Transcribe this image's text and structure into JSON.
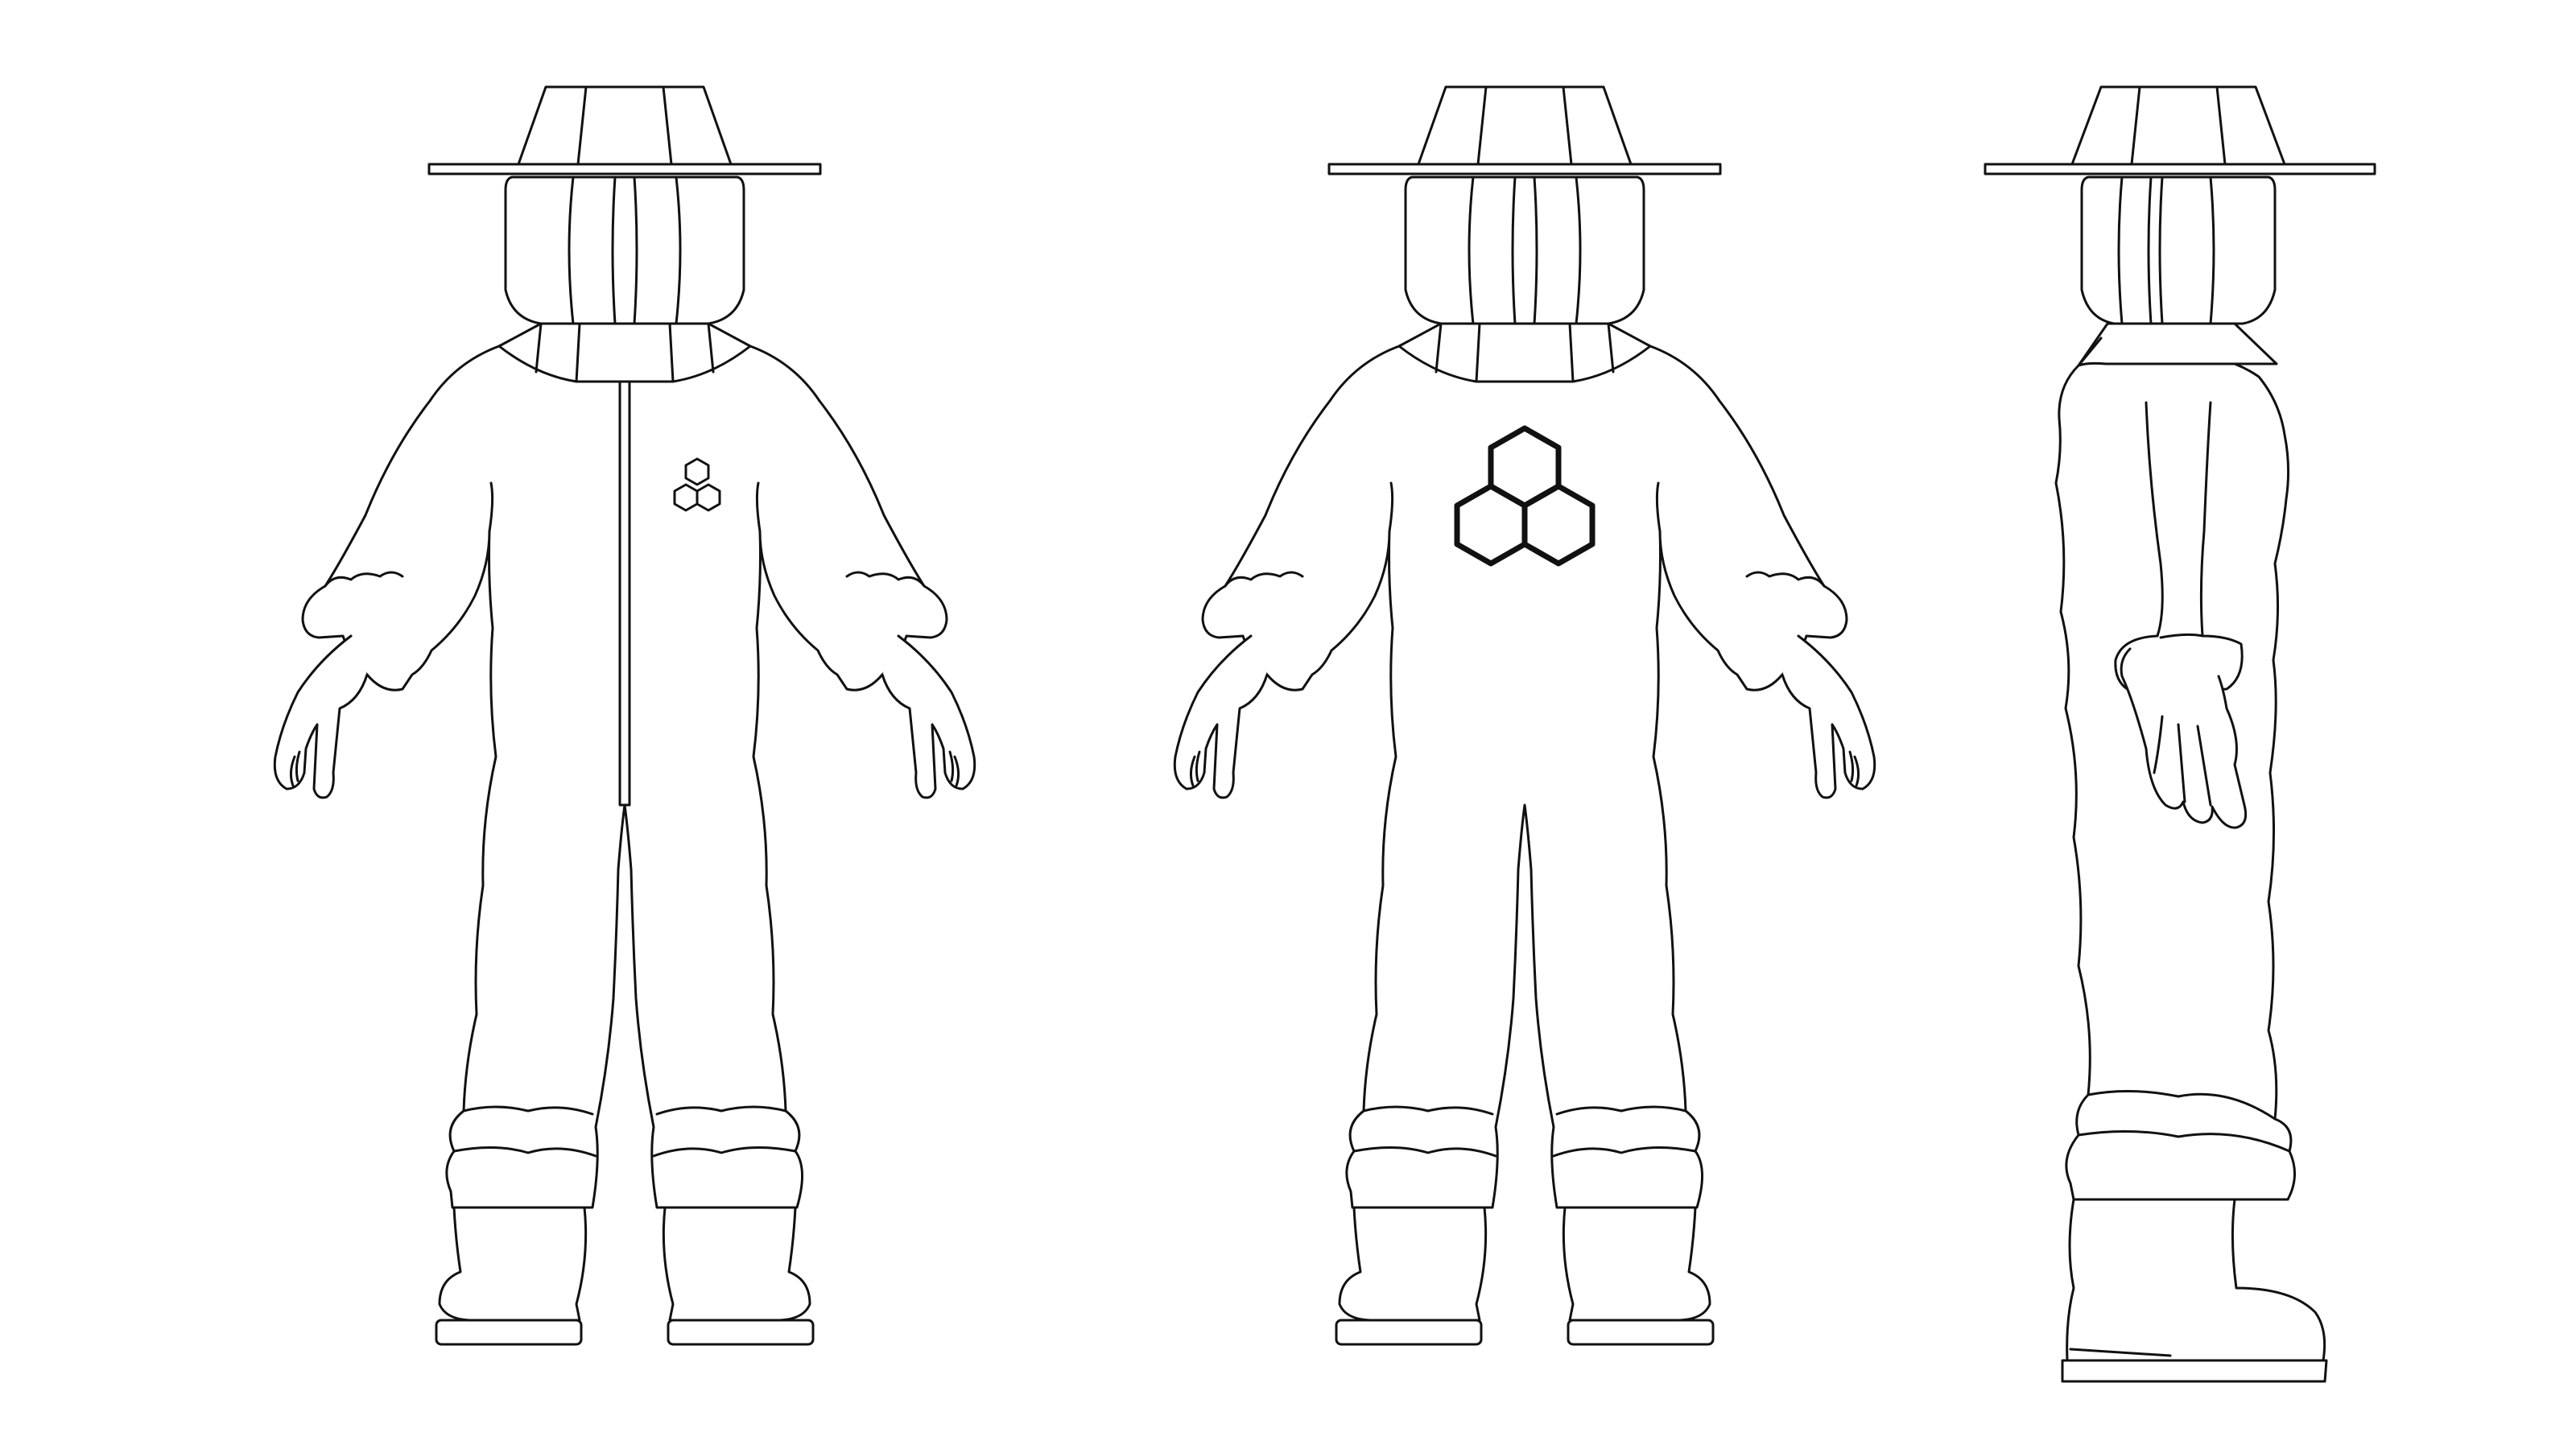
{
  "sheet": {
    "background_color": "#ffffff",
    "line_color": "#111111",
    "views": [
      {
        "id": "front",
        "logo": "honeycomb-icon-small",
        "has_zipper": true
      },
      {
        "id": "back",
        "logo": "honeycomb-icon-large",
        "has_zipper": false
      },
      {
        "id": "side",
        "logo": null,
        "has_zipper": false
      }
    ]
  }
}
